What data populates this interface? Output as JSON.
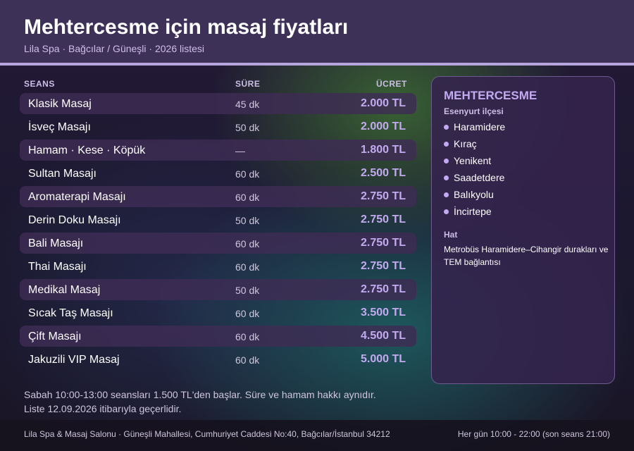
{
  "header": {
    "title": "Mehtercesme için masaj fiyatları",
    "subtitle": "Lila Spa · Bağcılar / Güneşli · 2026 listesi"
  },
  "table": {
    "headers": {
      "session": "SEANS",
      "duration": "SÜRE",
      "price": "ÜCRET"
    },
    "rows": [
      {
        "name": "Klasik Masaj",
        "duration": "45 dk",
        "price": "2.000 TL"
      },
      {
        "name": "İsveç Masajı",
        "duration": "50 dk",
        "price": "2.000 TL"
      },
      {
        "name": "Hamam · Kese · Köpük",
        "duration": "—",
        "price": "1.800 TL"
      },
      {
        "name": "Sultan Masajı",
        "duration": "60 dk",
        "price": "2.500 TL"
      },
      {
        "name": "Aromaterapi Masajı",
        "duration": "60 dk",
        "price": "2.750 TL"
      },
      {
        "name": "Derin Doku Masajı",
        "duration": "50 dk",
        "price": "2.750 TL"
      },
      {
        "name": "Bali Masajı",
        "duration": "60 dk",
        "price": "2.750 TL"
      },
      {
        "name": "Thai Masajı",
        "duration": "60 dk",
        "price": "2.750 TL"
      },
      {
        "name": "Medikal Masaj",
        "duration": "50 dk",
        "price": "2.750 TL"
      },
      {
        "name": "Sıcak Taş Masajı",
        "duration": "60 dk",
        "price": "3.500 TL"
      },
      {
        "name": "Çift Masajı",
        "duration": "60 dk",
        "price": "4.500 TL"
      },
      {
        "name": "Jakuzili VIP Masaj",
        "duration": "60 dk",
        "price": "5.000 TL"
      }
    ]
  },
  "panel": {
    "title": "MEHTERCESME",
    "district": "Esenyurt ilçesi",
    "neighborhoods": [
      "Haramidere",
      "Kıraç",
      "Yenikent",
      "Saadetdere",
      "Balıkyolu",
      "İncirtepe"
    ],
    "line_label": "Hat",
    "line_text": "Metrobüs Haramidere–Cihangir durakları ve TEM bağlantısı"
  },
  "notes": {
    "line1": "Sabah 10:00-13:00 seansları 1.500 TL'den başlar. Süre ve hamam hakkı aynıdır.",
    "line2": "Liste 12.09.2026 itibarıyla geçerlidir."
  },
  "footer": {
    "address": "Lila Spa & Masaj Salonu · Güneşli Mahallesi, Cumhuriyet Caddesi No:40, Bağcılar/İstanbul 34212",
    "hours": "Her gün 10:00 - 22:00 (son seans 21:00)"
  },
  "colors": {
    "header_bg": "#3d3158",
    "accent": "#c3aaf0",
    "header_line": "#b6a5dc"
  }
}
